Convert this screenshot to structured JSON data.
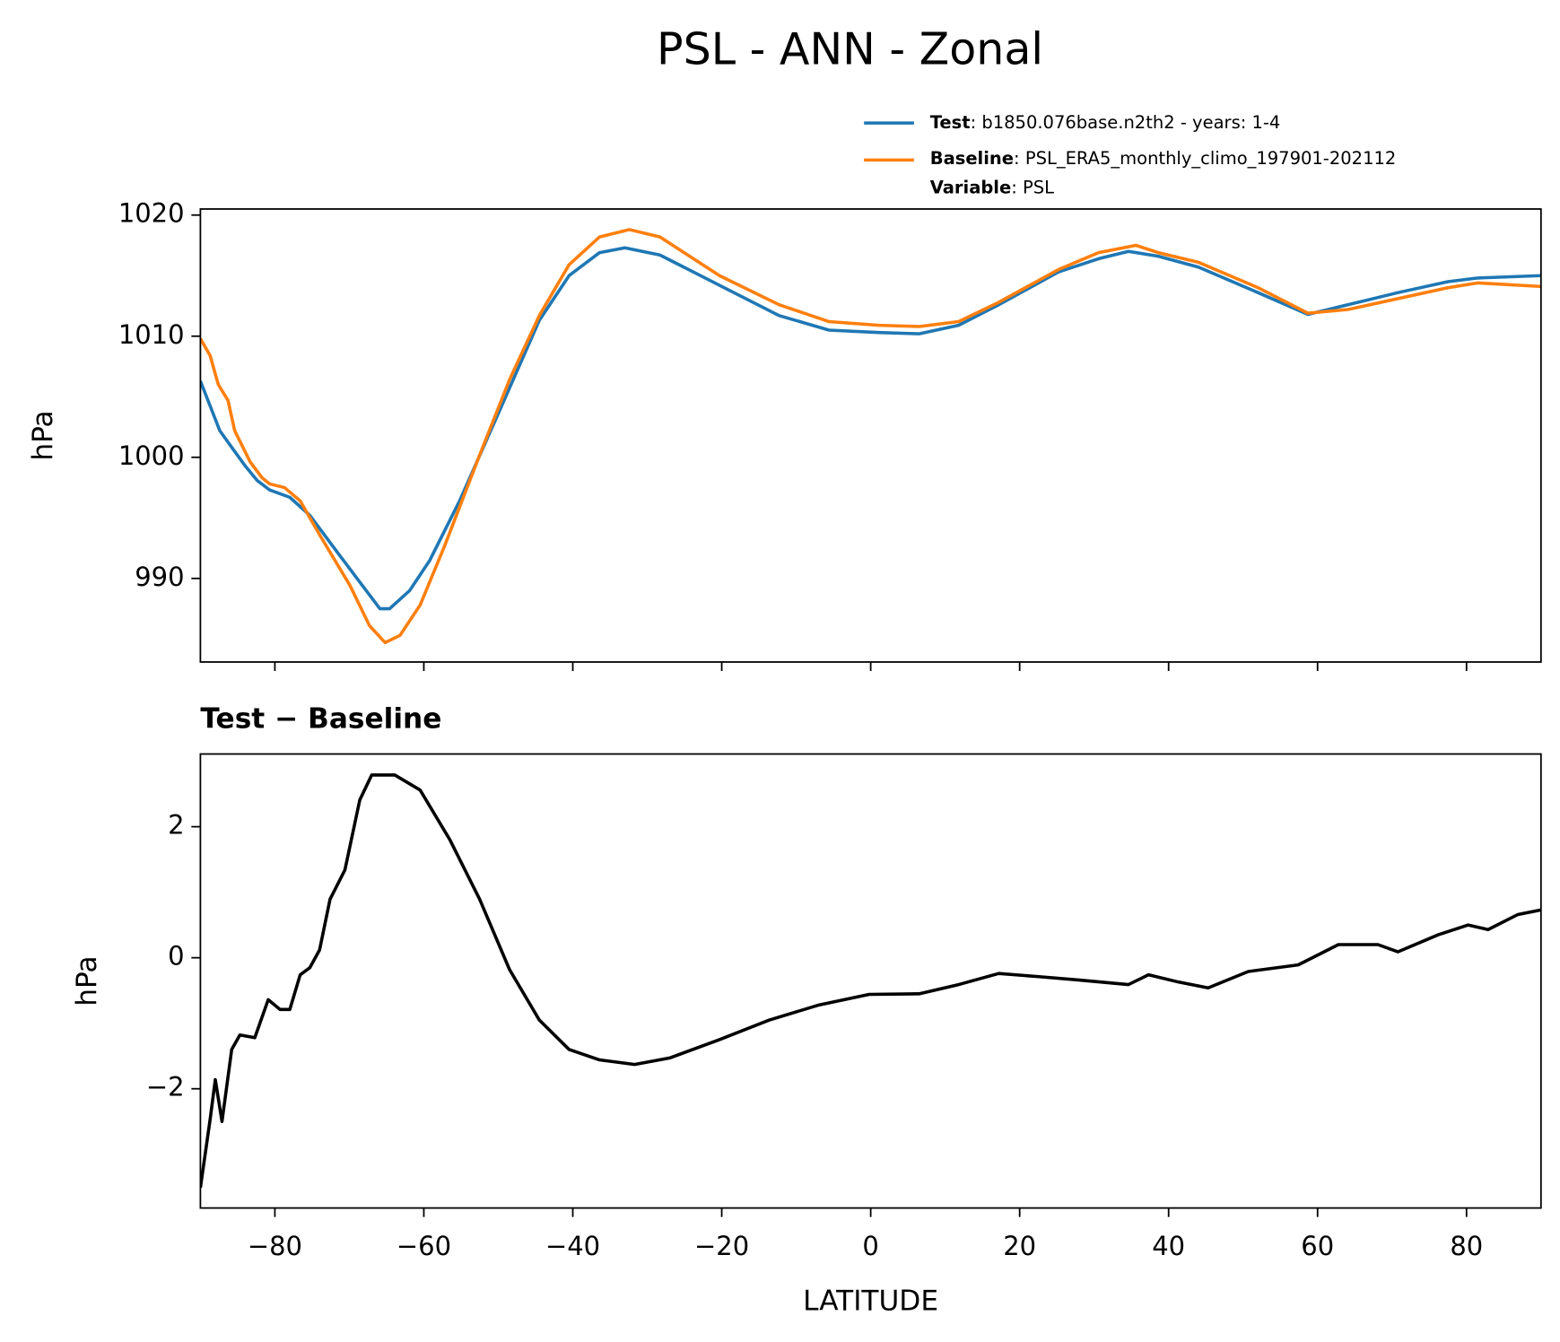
{
  "title": "PSL - ANN - Zonal",
  "chart_data": [
    {
      "type": "line",
      "ylabel": "hPa",
      "xlim": [
        -90,
        90
      ],
      "xticks": [
        -80,
        -60,
        -40,
        -20,
        0,
        20,
        40,
        60,
        80
      ],
      "ylim": [
        983.1,
        1020.5
      ],
      "yticks": [
        990,
        1000,
        1010,
        1020
      ],
      "legend": "upper right",
      "series": [
        {
          "name": "Test",
          "detail": ": b1850.076base.n2th2 - years: 1-4",
          "color": "#1f77b4",
          "x": [
            -90,
            -87.4,
            -86,
            -84,
            -82.4,
            -80.7,
            -78,
            -75.3,
            -71.3,
            -68.6,
            -65.9,
            -64.6,
            -61.9,
            -59.2,
            -55.2,
            -49.8,
            -44.5,
            -40.5,
            -36.4,
            -33,
            -28.3,
            -20.3,
            -12.3,
            -5.6,
            1.1,
            6.5,
            11.8,
            17.2,
            25.2,
            30.6,
            34.6,
            38.6,
            44,
            52,
            58.7,
            64.1,
            70.8,
            77.5,
            81.5,
            90
          ],
          "values": [
            1006.3,
            1002.2,
            1001,
            999.3,
            998.1,
            997.3,
            996.7,
            995.2,
            991.9,
            989.7,
            987.5,
            987.5,
            989,
            991.5,
            996.4,
            1003.9,
            1011.3,
            1015,
            1016.9,
            1017.3,
            1016.7,
            1014.2,
            1011.7,
            1010.5,
            1010.3,
            1010.2,
            1010.9,
            1012.6,
            1015.3,
            1016.4,
            1017,
            1016.6,
            1015.7,
            1013.6,
            1011.8,
            1012.6,
            1013.6,
            1014.5,
            1014.8,
            1015
          ]
        },
        {
          "name": "Baseline",
          "detail": ": PSL_ERA5_monthly_climo_197901-202112",
          "color": "#ff7f0e",
          "x": [
            -90,
            -88.7,
            -87.6,
            -86.3,
            -85.4,
            -83.3,
            -81.7,
            -80.7,
            -78.7,
            -76.6,
            -74,
            -69.9,
            -67.3,
            -65.2,
            -63.2,
            -60.5,
            -57.2,
            -52.5,
            -48.5,
            -44.5,
            -40.5,
            -36.4,
            -32.4,
            -28.3,
            -20.3,
            -12.3,
            -5.6,
            1.1,
            6.5,
            11.8,
            17.2,
            25.2,
            30.6,
            35.6,
            38.6,
            44,
            52,
            58.7,
            64.1,
            70.8,
            77.5,
            81.5,
            90
          ],
          "values": [
            1009.8,
            1008.4,
            1006,
            1004.7,
            1002.2,
            999.6,
            998.3,
            997.8,
            997.5,
            996.4,
            993.6,
            989.4,
            986.1,
            984.7,
            985.3,
            987.8,
            992.7,
            1000.2,
            1006.4,
            1011.7,
            1015.9,
            1018.2,
            1018.8,
            1018.2,
            1015,
            1012.6,
            1011.2,
            1010.9,
            1010.8,
            1011.2,
            1012.8,
            1015.5,
            1016.9,
            1017.5,
            1016.9,
            1016.1,
            1014,
            1011.9,
            1012.2,
            1013.1,
            1014,
            1014.4,
            1014.1
          ]
        }
      ],
      "legend_extra": {
        "name": "Variable",
        "detail": ": PSL"
      }
    },
    {
      "type": "line",
      "title": "Test − Baseline",
      "xlabel": "LATITUDE",
      "ylabel": "hPa",
      "xlim": [
        -90,
        90
      ],
      "xticks": [
        {
          "value": -80,
          "label": "−80"
        },
        {
          "value": -60,
          "label": "−60"
        },
        {
          "value": -40,
          "label": "−40"
        },
        {
          "value": -20,
          "label": "−20"
        },
        0,
        20,
        40,
        60,
        80
      ],
      "ylim": [
        -3.82,
        3.11
      ],
      "yticks": [
        {
          "value": -2,
          "label": "−2"
        },
        0,
        2
      ],
      "series": [
        {
          "color": "#000000",
          "x": [
            -90,
            -88.7,
            -88,
            -87.1,
            -85.8,
            -84.7,
            -82.7,
            -80.9,
            -79.3,
            -78,
            -76.6,
            -75.3,
            -74,
            -72.6,
            -70.6,
            -68.6,
            -67,
            -63.9,
            -60.5,
            -56.5,
            -52.5,
            -48.5,
            -44.5,
            -40.5,
            -36.4,
            -31.7,
            -27,
            -20.3,
            -13.6,
            -6.9,
            -0.2,
            6.5,
            11.8,
            17.2,
            22.6,
            27.9,
            34.6,
            37.3,
            41.3,
            45.3,
            50.7,
            57.4,
            62.8,
            68.1,
            70.8,
            76.2,
            80.2,
            82.9,
            86.9,
            90
          ],
          "values": [
            -3.51,
            -2.47,
            -1.86,
            -2.5,
            -1.4,
            -1.18,
            -1.22,
            -0.64,
            -0.79,
            -0.79,
            -0.26,
            -0.15,
            0.12,
            0.89,
            1.34,
            2.41,
            2.79,
            2.79,
            2.56,
            1.8,
            0.89,
            -0.18,
            -0.95,
            -1.4,
            -1.56,
            -1.63,
            -1.53,
            -1.25,
            -0.95,
            -0.72,
            -0.56,
            -0.55,
            -0.41,
            -0.24,
            -0.29,
            -0.34,
            -0.41,
            -0.26,
            -0.37,
            -0.46,
            -0.21,
            -0.11,
            0.2,
            0.2,
            0.09,
            0.35,
            0.5,
            0.43,
            0.66,
            0.73
          ]
        }
      ]
    }
  ]
}
